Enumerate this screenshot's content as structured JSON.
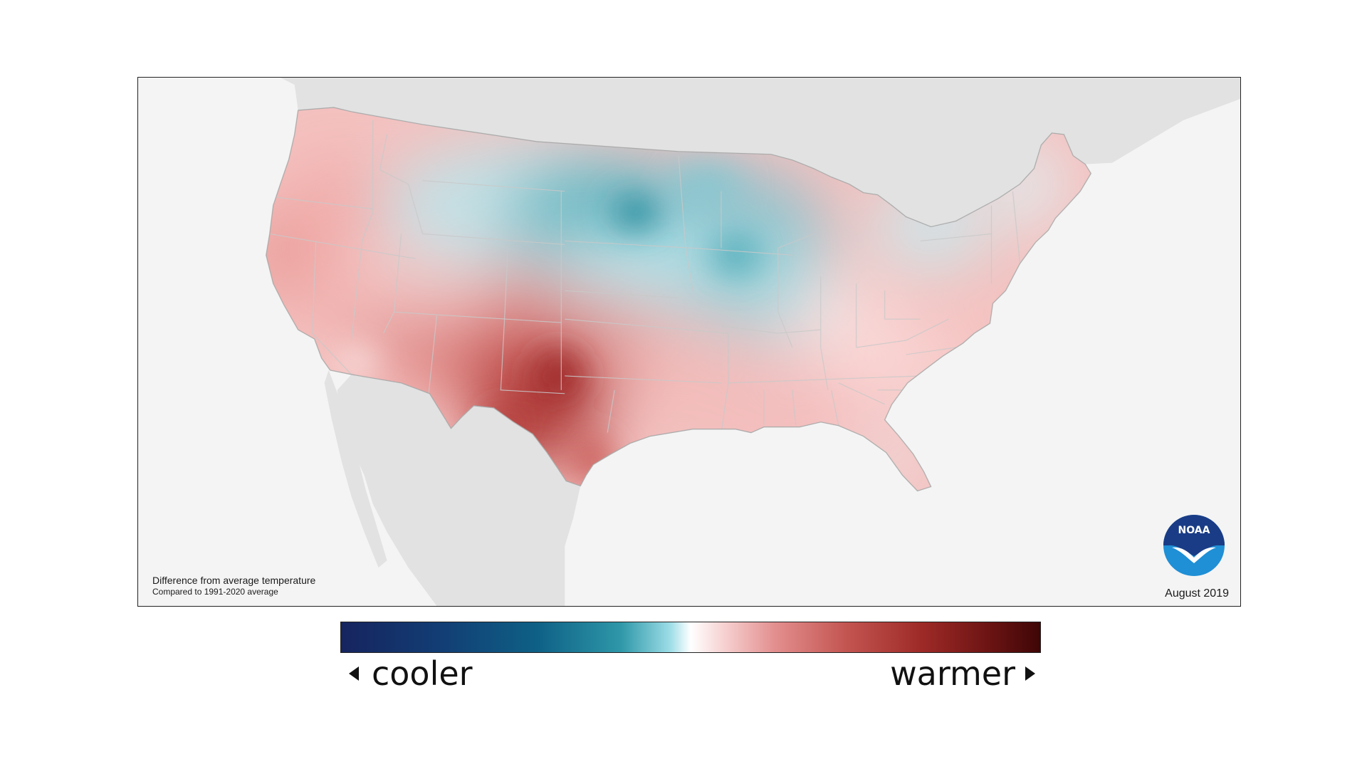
{
  "map": {
    "caption_title": "Difference from average temperature",
    "caption_subtitle": "Compared to 1991-2020 average",
    "date": "August 2019",
    "logo_text": "NOAA"
  },
  "legend": {
    "cooler_label": "cooler",
    "warmer_label": "warmer",
    "colors": [
      "#16245f",
      "#0e6086",
      "#2e97a8",
      "#9bdce6",
      "#ffffff",
      "#e38f8f",
      "#c45652",
      "#9e2a27",
      "#3f0606"
    ]
  },
  "colors": {
    "ocean": "#f4f4f4",
    "neighbor_land": "#e2e2e2",
    "warm_base": "#f4c2c0",
    "cool_base": "#8fd3dc",
    "hot": "#b8403d",
    "cold": "#2f97a6",
    "noaa_blue": "#1a56a6",
    "noaa_light": "#1f8fd6"
  }
}
